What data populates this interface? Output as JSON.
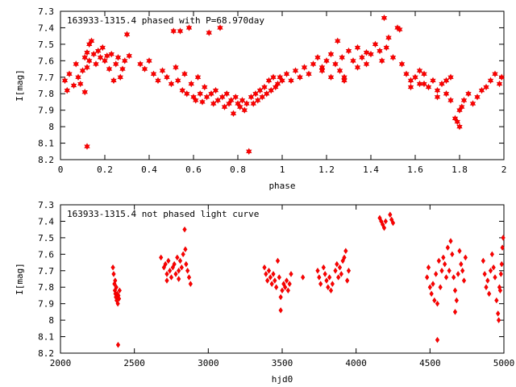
{
  "colors": {
    "points": "#ff0000",
    "axes": "#000000",
    "background": "#ffffff"
  },
  "chart_data": [
    {
      "type": "scatter",
      "title": "163933-1315.4 phased with P=68.970day",
      "xlabel": "phase",
      "ylabel": "I[mag]",
      "xlim": [
        0,
        2
      ],
      "ylim": [
        7.3,
        8.2
      ],
      "y_inverted": true,
      "marker": "star",
      "xticks": [
        "0",
        "0.2",
        "0.4",
        "0.6",
        "0.8",
        "1",
        "1.2",
        "1.4",
        "1.6",
        "1.8",
        "2"
      ],
      "yticks": [
        "7.3",
        "7.4",
        "7.5",
        "7.6",
        "7.7",
        "7.8",
        "7.9",
        "8",
        "8.1",
        "8.2"
      ],
      "points": [
        [
          0.02,
          7.72
        ],
        [
          0.03,
          7.78
        ],
        [
          0.04,
          7.68
        ],
        [
          0.06,
          7.75
        ],
        [
          0.07,
          7.62
        ],
        [
          0.08,
          7.7
        ],
        [
          0.09,
          7.74
        ],
        [
          0.1,
          7.66
        ],
        [
          0.11,
          7.58
        ],
        [
          0.11,
          7.79
        ],
        [
          0.12,
          7.55
        ],
        [
          0.12,
          7.64
        ],
        [
          0.13,
          7.5
        ],
        [
          0.13,
          7.6
        ],
        [
          0.14,
          7.48
        ],
        [
          0.15,
          7.56
        ],
        [
          0.16,
          7.62
        ],
        [
          0.17,
          7.54
        ],
        [
          0.18,
          7.58
        ],
        [
          0.19,
          7.52
        ],
        [
          0.2,
          7.6
        ],
        [
          0.21,
          7.57
        ],
        [
          0.22,
          7.65
        ],
        [
          0.23,
          7.56
        ],
        [
          0.24,
          7.72
        ],
        [
          0.25,
          7.62
        ],
        [
          0.26,
          7.58
        ],
        [
          0.27,
          7.7
        ],
        [
          0.28,
          7.65
        ],
        [
          0.29,
          7.6
        ],
        [
          0.3,
          7.44
        ],
        [
          0.31,
          7.57
        ],
        [
          0.12,
          8.12
        ],
        [
          0.36,
          7.62
        ],
        [
          0.38,
          7.65
        ],
        [
          0.4,
          7.6
        ],
        [
          0.42,
          7.68
        ],
        [
          0.44,
          7.72
        ],
        [
          0.46,
          7.66
        ],
        [
          0.48,
          7.7
        ],
        [
          0.5,
          7.74
        ],
        [
          0.51,
          7.42
        ],
        [
          0.52,
          7.64
        ],
        [
          0.53,
          7.72
        ],
        [
          0.54,
          7.42
        ],
        [
          0.55,
          7.78
        ],
        [
          0.56,
          7.68
        ],
        [
          0.57,
          7.8
        ],
        [
          0.58,
          7.4
        ],
        [
          0.59,
          7.74
        ],
        [
          0.6,
          7.82
        ],
        [
          0.61,
          7.84
        ],
        [
          0.62,
          7.7
        ],
        [
          0.63,
          7.8
        ],
        [
          0.64,
          7.85
        ],
        [
          0.65,
          7.76
        ],
        [
          0.66,
          7.82
        ],
        [
          0.67,
          7.43
        ],
        [
          0.68,
          7.8
        ],
        [
          0.69,
          7.86
        ],
        [
          0.7,
          7.78
        ],
        [
          0.71,
          7.84
        ],
        [
          0.72,
          7.4
        ],
        [
          0.73,
          7.82
        ],
        [
          0.74,
          7.88
        ],
        [
          0.75,
          7.8
        ],
        [
          0.76,
          7.86
        ],
        [
          0.77,
          7.84
        ],
        [
          0.78,
          7.92
        ],
        [
          0.79,
          7.82
        ],
        [
          0.8,
          7.86
        ],
        [
          0.81,
          7.88
        ],
        [
          0.82,
          7.84
        ],
        [
          0.83,
          7.9
        ],
        [
          0.84,
          7.86
        ],
        [
          0.85,
          8.15
        ],
        [
          0.86,
          7.82
        ],
        [
          0.87,
          7.86
        ],
        [
          0.88,
          7.8
        ],
        [
          0.89,
          7.84
        ],
        [
          0.9,
          7.78
        ],
        [
          0.91,
          7.82
        ],
        [
          0.92,
          7.76
        ],
        [
          0.93,
          7.8
        ],
        [
          0.94,
          7.72
        ],
        [
          0.95,
          7.78
        ],
        [
          0.96,
          7.7
        ],
        [
          0.97,
          7.76
        ],
        [
          0.98,
          7.74
        ],
        [
          0.99,
          7.7
        ],
        [
          1.0,
          7.72
        ],
        [
          1.02,
          7.68
        ],
        [
          1.04,
          7.72
        ],
        [
          1.06,
          7.66
        ],
        [
          1.08,
          7.7
        ],
        [
          1.1,
          7.64
        ],
        [
          1.12,
          7.68
        ],
        [
          1.14,
          7.62
        ],
        [
          1.16,
          7.58
        ],
        [
          1.18,
          7.64
        ],
        [
          1.2,
          7.6
        ],
        [
          1.22,
          7.56
        ],
        [
          1.24,
          7.62
        ],
        [
          1.25,
          7.48
        ],
        [
          1.26,
          7.66
        ],
        [
          1.27,
          7.58
        ],
        [
          1.28,
          7.7
        ],
        [
          1.3,
          7.54
        ],
        [
          1.32,
          7.6
        ],
        [
          1.34,
          7.52
        ],
        [
          1.36,
          7.58
        ],
        [
          1.38,
          7.55
        ],
        [
          1.4,
          7.56
        ],
        [
          1.42,
          7.5
        ],
        [
          1.44,
          7.54
        ],
        [
          1.45,
          7.6
        ],
        [
          1.46,
          7.34
        ],
        [
          1.47,
          7.52
        ],
        [
          1.48,
          7.46
        ],
        [
          1.5,
          7.58
        ],
        [
          1.52,
          7.4
        ],
        [
          1.53,
          7.41
        ],
        [
          1.54,
          7.62
        ],
        [
          1.56,
          7.68
        ],
        [
          1.58,
          7.72
        ],
        [
          1.6,
          7.7
        ],
        [
          1.62,
          7.74
        ],
        [
          1.64,
          7.68
        ],
        [
          1.66,
          7.76
        ],
        [
          1.68,
          7.72
        ],
        [
          1.7,
          7.78
        ],
        [
          1.72,
          7.74
        ],
        [
          1.74,
          7.72
        ],
        [
          1.76,
          7.7
        ],
        [
          1.78,
          7.95
        ],
        [
          1.79,
          7.97
        ],
        [
          1.8,
          8.0
        ],
        [
          1.81,
          7.88
        ],
        [
          1.82,
          7.84
        ],
        [
          1.84,
          7.8
        ],
        [
          1.86,
          7.86
        ],
        [
          1.88,
          7.82
        ],
        [
          1.9,
          7.78
        ],
        [
          1.92,
          7.76
        ],
        [
          1.94,
          7.72
        ],
        [
          1.96,
          7.68
        ],
        [
          1.98,
          7.74
        ],
        [
          1.99,
          7.7
        ],
        [
          1.7,
          7.82
        ],
        [
          1.74,
          7.8
        ],
        [
          1.76,
          7.84
        ],
        [
          1.8,
          7.9
        ],
        [
          1.18,
          7.66
        ],
        [
          1.22,
          7.7
        ],
        [
          1.28,
          7.72
        ],
        [
          1.34,
          7.64
        ],
        [
          1.38,
          7.62
        ],
        [
          1.58,
          7.76
        ],
        [
          1.62,
          7.66
        ],
        [
          1.64,
          7.74
        ]
      ]
    },
    {
      "type": "scatter",
      "title": "163933-1315.4 not phased light curve",
      "xlabel": "hjd0",
      "ylabel": "I[mag]",
      "xlim": [
        2000,
        5000
      ],
      "ylim": [
        7.3,
        8.2
      ],
      "y_inverted": true,
      "marker": "diamond",
      "xticks": [
        "2000",
        "2500",
        "3000",
        "3500",
        "4000",
        "4500",
        "5000"
      ],
      "yticks": [
        "7.3",
        "7.4",
        "7.5",
        "7.6",
        "7.7",
        "7.8",
        "7.9",
        "8",
        "8.1",
        "8.2"
      ],
      "points": [
        [
          2360,
          7.72
        ],
        [
          2365,
          7.78
        ],
        [
          2368,
          7.82
        ],
        [
          2372,
          7.84
        ],
        [
          2375,
          7.86
        ],
        [
          2378,
          7.8
        ],
        [
          2380,
          7.88
        ],
        [
          2384,
          7.84
        ],
        [
          2388,
          7.9
        ],
        [
          2392,
          7.85
        ],
        [
          2396,
          7.87
        ],
        [
          2400,
          7.82
        ],
        [
          2390,
          8.15
        ],
        [
          2355,
          7.68
        ],
        [
          2370,
          7.76
        ],
        [
          2680,
          7.62
        ],
        [
          2700,
          7.68
        ],
        [
          2710,
          7.66
        ],
        [
          2720,
          7.72
        ],
        [
          2730,
          7.64
        ],
        [
          2740,
          7.7
        ],
        [
          2750,
          7.74
        ],
        [
          2760,
          7.68
        ],
        [
          2770,
          7.66
        ],
        [
          2780,
          7.72
        ],
        [
          2790,
          7.62
        ],
        [
          2800,
          7.7
        ],
        [
          2810,
          7.64
        ],
        [
          2820,
          7.68
        ],
        [
          2830,
          7.6
        ],
        [
          2840,
          7.45
        ],
        [
          2850,
          7.66
        ],
        [
          2860,
          7.7
        ],
        [
          2870,
          7.74
        ],
        [
          2880,
          7.78
        ],
        [
          2720,
          7.76
        ],
        [
          2800,
          7.75
        ],
        [
          2845,
          7.57
        ],
        [
          3380,
          7.68
        ],
        [
          3390,
          7.72
        ],
        [
          3400,
          7.76
        ],
        [
          3410,
          7.7
        ],
        [
          3420,
          7.74
        ],
        [
          3430,
          7.78
        ],
        [
          3440,
          7.72
        ],
        [
          3450,
          7.76
        ],
        [
          3460,
          7.8
        ],
        [
          3470,
          7.64
        ],
        [
          3480,
          7.74
        ],
        [
          3490,
          7.86
        ],
        [
          3500,
          7.82
        ],
        [
          3510,
          7.78
        ],
        [
          3520,
          7.8
        ],
        [
          3530,
          7.76
        ],
        [
          3540,
          7.82
        ],
        [
          3550,
          7.78
        ],
        [
          3560,
          7.72
        ],
        [
          3490,
          7.94
        ],
        [
          3640,
          7.74
        ],
        [
          3740,
          7.7
        ],
        [
          3750,
          7.74
        ],
        [
          3760,
          7.78
        ],
        [
          3780,
          7.68
        ],
        [
          3790,
          7.72
        ],
        [
          3800,
          7.76
        ],
        [
          3810,
          7.8
        ],
        [
          3820,
          7.74
        ],
        [
          3830,
          7.82
        ],
        [
          3840,
          7.78
        ],
        [
          3860,
          7.7
        ],
        [
          3870,
          7.66
        ],
        [
          3880,
          7.74
        ],
        [
          3890,
          7.68
        ],
        [
          3900,
          7.72
        ],
        [
          3910,
          7.64
        ],
        [
          3920,
          7.62
        ],
        [
          3930,
          7.58
        ],
        [
          3940,
          7.76
        ],
        [
          3950,
          7.7
        ],
        [
          4160,
          7.38
        ],
        [
          4170,
          7.4
        ],
        [
          4180,
          7.42
        ],
        [
          4190,
          7.44
        ],
        [
          4200,
          7.4
        ],
        [
          4230,
          7.36
        ],
        [
          4240,
          7.39
        ],
        [
          4250,
          7.41
        ],
        [
          4480,
          7.74
        ],
        [
          4490,
          7.68
        ],
        [
          4500,
          7.8
        ],
        [
          4510,
          7.84
        ],
        [
          4520,
          7.78
        ],
        [
          4530,
          7.88
        ],
        [
          4540,
          7.72
        ],
        [
          4550,
          7.9
        ],
        [
          4560,
          7.64
        ],
        [
          4570,
          7.8
        ],
        [
          4580,
          7.7
        ],
        [
          4590,
          7.62
        ],
        [
          4600,
          7.66
        ],
        [
          4610,
          7.74
        ],
        [
          4620,
          7.56
        ],
        [
          4630,
          7.7
        ],
        [
          4640,
          7.52
        ],
        [
          4650,
          7.6
        ],
        [
          4660,
          7.74
        ],
        [
          4670,
          7.82
        ],
        [
          4680,
          7.88
        ],
        [
          4690,
          7.72
        ],
        [
          4700,
          7.58
        ],
        [
          4710,
          7.66
        ],
        [
          4720,
          7.7
        ],
        [
          4730,
          7.76
        ],
        [
          4740,
          7.62
        ],
        [
          4550,
          8.12
        ],
        [
          4670,
          7.95
        ],
        [
          4860,
          7.64
        ],
        [
          4870,
          7.72
        ],
        [
          4880,
          7.8
        ],
        [
          4890,
          7.76
        ],
        [
          4900,
          7.84
        ],
        [
          4910,
          7.7
        ],
        [
          4920,
          7.6
        ],
        [
          4930,
          7.68
        ],
        [
          4940,
          7.74
        ],
        [
          4950,
          7.88
        ],
        [
          4960,
          7.96
        ],
        [
          4970,
          7.8
        ],
        [
          4980,
          7.72
        ],
        [
          4990,
          7.56
        ],
        [
          4995,
          7.5
        ],
        [
          4965,
          8.0
        ],
        [
          4975,
          7.82
        ],
        [
          4985,
          7.66
        ]
      ]
    }
  ]
}
